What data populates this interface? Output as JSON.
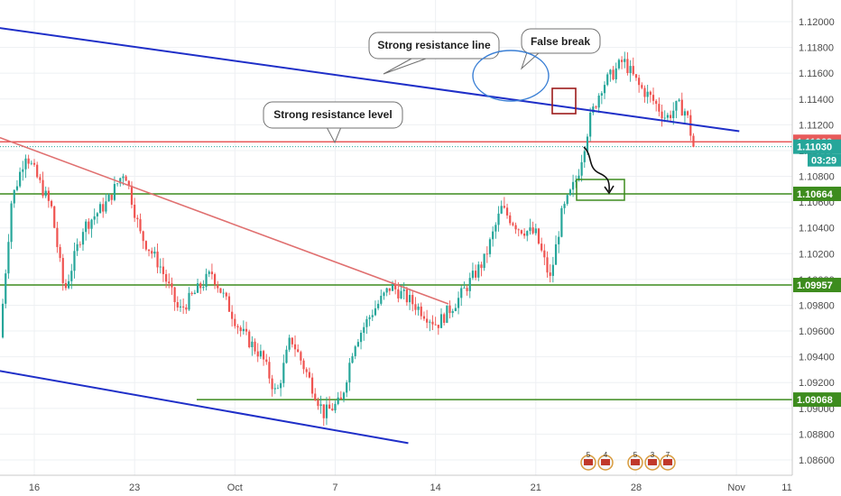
{
  "chart_data": {
    "type": "candlestick",
    "title": "",
    "xlabel": "",
    "ylabel": "",
    "ylim": [
      1.0853,
      1.1224
    ],
    "x_ticks": [
      "16",
      "23",
      "Oct",
      "7",
      "14",
      "21",
      "28",
      "Nov",
      "11"
    ],
    "y_ticks": [
      "1.12000",
      "1.11800",
      "1.11600",
      "1.11400",
      "1.11200",
      "1.11000",
      "1.10800",
      "1.10600",
      "1.10400",
      "1.10200",
      "1.10000",
      "1.09800",
      "1.09600",
      "1.09400",
      "1.09200",
      "1.09000",
      "1.08800",
      "1.08600"
    ],
    "price_path": [
      [
        0.0,
        1.0955
      ],
      [
        0.8,
        1.106
      ],
      [
        1.8,
        1.1098
      ],
      [
        3.6,
        1.1055
      ],
      [
        4.5,
        1.099
      ],
      [
        5.8,
        1.104
      ],
      [
        7.5,
        1.106
      ],
      [
        8.7,
        1.1085
      ],
      [
        9.8,
        1.1035
      ],
      [
        11.2,
        1.101
      ],
      [
        12.5,
        1.0975
      ],
      [
        14.8,
        1.1005
      ],
      [
        16.8,
        1.096
      ],
      [
        18.3,
        1.094
      ],
      [
        19.3,
        1.091
      ],
      [
        20.3,
        1.0955
      ],
      [
        21.3,
        1.093
      ],
      [
        22.6,
        1.0896
      ],
      [
        23.8,
        1.0905
      ],
      [
        24.7,
        1.095
      ],
      [
        26.0,
        1.0975
      ],
      [
        27.3,
        1.0995
      ],
      [
        29.0,
        1.098
      ],
      [
        30.5,
        1.0965
      ],
      [
        32.0,
        1.0985
      ],
      [
        33.8,
        1.1015
      ],
      [
        35.0,
        1.1055
      ],
      [
        36.2,
        1.104
      ],
      [
        37.4,
        1.1035
      ],
      [
        38.4,
        1.1
      ],
      [
        39.2,
        1.105
      ],
      [
        40.3,
        1.108
      ],
      [
        41.2,
        1.1125
      ],
      [
        42.0,
        1.115
      ],
      [
        42.8,
        1.116
      ],
      [
        43.5,
        1.117
      ],
      [
        44.6,
        1.115
      ],
      [
        45.5,
        1.114
      ],
      [
        46.5,
        1.1125
      ],
      [
        47.3,
        1.1135
      ],
      [
        47.9,
        1.113
      ],
      [
        48.4,
        1.1103
      ]
    ],
    "current_price": 1.1103,
    "countdown": "03:29",
    "levels": [
      {
        "value": 1.11068,
        "label": "1.11068",
        "color": "#e85a5a"
      },
      {
        "value": 1.10664,
        "label": "1.10664",
        "color": "#3d8c1e"
      },
      {
        "value": 1.09957,
        "label": "1.09957",
        "color": "#3d8c1e"
      },
      {
        "value": 1.09068,
        "label": "1.09068",
        "color": "#3d8c1e"
      }
    ],
    "current_color": "#26a69a",
    "trendlines": [
      {
        "name": "upper-channel",
        "color": "#1f2fc8",
        "from": [
          0,
          1.1195
        ],
        "to": [
          51.6,
          1.1115
        ]
      },
      {
        "name": "lower-channel",
        "color": "#1f2fc8",
        "from": [
          0,
          1.0929
        ],
        "to": [
          28.5,
          1.0873
        ]
      },
      {
        "name": "red-downtrend",
        "color": "#e07070",
        "from": [
          0,
          1.111
        ],
        "to": [
          31.3,
          1.0981
        ]
      }
    ],
    "annotations": [
      {
        "text": "Strong resistance line"
      },
      {
        "text": "False break"
      },
      {
        "text": "Strong resistance level"
      }
    ],
    "event_labels": [
      "5",
      "4",
      "5",
      "3",
      "7"
    ]
  }
}
